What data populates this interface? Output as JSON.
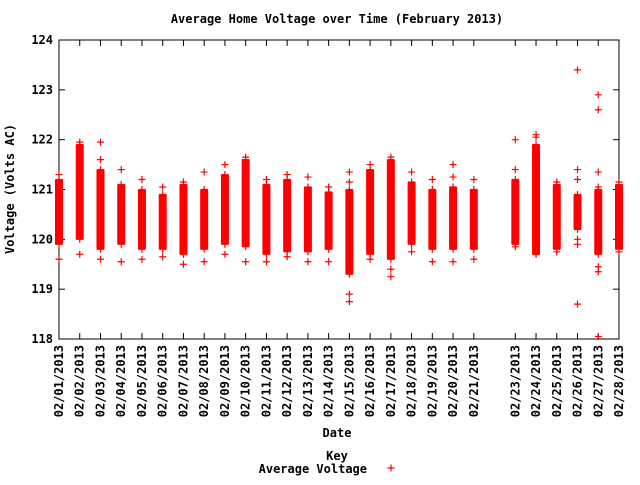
{
  "chart_data": {
    "type": "scatter",
    "title": "Average Home Voltage over Time (February 2013)",
    "xlabel": "Date",
    "ylabel": "Voltage (Volts AC)",
    "ylim": [
      118,
      124
    ],
    "yticks": [
      "118",
      "119",
      "120",
      "121",
      "122",
      "123",
      "124"
    ],
    "x_range": [
      "02/01/2013",
      "02/28/2013"
    ],
    "xticks": [
      "02/01/2013",
      "02/02/2013",
      "02/03/2013",
      "02/04/2013",
      "02/05/2013",
      "02/06/2013",
      "02/07/2013",
      "02/08/2013",
      "02/09/2013",
      "02/10/2013",
      "02/11/2013",
      "02/12/2013",
      "02/13/2013",
      "02/14/2013",
      "02/15/2013",
      "02/16/2013",
      "02/17/2013",
      "02/18/2013",
      "02/19/2013",
      "02/20/2013",
      "02/21/2013",
      "02/23/2013",
      "02/24/2013",
      "02/25/2013",
      "02/26/2013",
      "02/27/2013",
      "02/28/2013"
    ],
    "grid": false,
    "legend": {
      "title": "Key",
      "position": "bottom-center",
      "entries": [
        "Average Voltage"
      ]
    },
    "series": [
      {
        "name": "Average Voltage",
        "color": "#ff0000",
        "marker": "plus",
        "days": [
          {
            "date": "02/01/2013",
            "range": [
              119.9,
              121.2
            ],
            "outliers": [
              119.6,
              121.3
            ]
          },
          {
            "date": "02/02/2013",
            "range": [
              120.0,
              121.9
            ],
            "outliers": [
              119.7,
              121.95
            ]
          },
          {
            "date": "02/03/2013",
            "range": [
              119.8,
              121.4
            ],
            "outliers": [
              119.6,
              121.95,
              121.6
            ]
          },
          {
            "date": "02/04/2013",
            "range": [
              119.9,
              121.1
            ],
            "outliers": [
              119.55,
              121.4
            ]
          },
          {
            "date": "02/05/2013",
            "range": [
              119.8,
              121.0
            ],
            "outliers": [
              119.6,
              121.2
            ]
          },
          {
            "date": "02/06/2013",
            "range": [
              119.8,
              120.9
            ],
            "outliers": [
              119.65,
              121.05
            ]
          },
          {
            "date": "02/07/2013",
            "range": [
              119.7,
              121.1
            ],
            "outliers": [
              119.5,
              121.15
            ]
          },
          {
            "date": "02/08/2013",
            "range": [
              119.8,
              121.0
            ],
            "outliers": [
              119.55,
              121.35
            ]
          },
          {
            "date": "02/09/2013",
            "range": [
              119.9,
              121.3
            ],
            "outliers": [
              119.7,
              121.5
            ]
          },
          {
            "date": "02/10/2013",
            "range": [
              119.85,
              121.6
            ],
            "outliers": [
              119.55,
              121.65
            ]
          },
          {
            "date": "02/11/2013",
            "range": [
              119.7,
              121.1
            ],
            "outliers": [
              119.55,
              121.2
            ]
          },
          {
            "date": "02/12/2013",
            "range": [
              119.75,
              121.2
            ],
            "outliers": [
              119.65,
              121.3
            ]
          },
          {
            "date": "02/13/2013",
            "range": [
              119.75,
              121.05
            ],
            "outliers": [
              119.55,
              121.25
            ]
          },
          {
            "date": "02/14/2013",
            "range": [
              119.8,
              120.95
            ],
            "outliers": [
              119.55,
              121.05
            ]
          },
          {
            "date": "02/15/2013",
            "range": [
              119.3,
              121.0
            ],
            "outliers": [
              118.75,
              118.9,
              121.15,
              121.35
            ]
          },
          {
            "date": "02/16/2013",
            "range": [
              119.7,
              121.4
            ],
            "outliers": [
              119.6,
              121.5
            ]
          },
          {
            "date": "02/17/2013",
            "range": [
              119.6,
              121.6
            ],
            "outliers": [
              119.25,
              119.4,
              121.65
            ]
          },
          {
            "date": "02/18/2013",
            "range": [
              119.9,
              121.15
            ],
            "outliers": [
              119.75,
              121.35
            ]
          },
          {
            "date": "02/19/2013",
            "range": [
              119.8,
              121.0
            ],
            "outliers": [
              119.55,
              121.2
            ]
          },
          {
            "date": "02/20/2013",
            "range": [
              119.8,
              121.05
            ],
            "outliers": [
              119.55,
              121.25,
              121.5
            ]
          },
          {
            "date": "02/21/2013",
            "range": [
              119.8,
              121.0
            ],
            "outliers": [
              119.6,
              121.2
            ]
          },
          {
            "date": "02/23/2013",
            "range": [
              119.9,
              121.2
            ],
            "outliers": [
              119.85,
              121.4,
              122.0
            ]
          },
          {
            "date": "02/24/2013",
            "range": [
              119.7,
              121.9
            ],
            "outliers": [
              119.7,
              122.05,
              122.1
            ]
          },
          {
            "date": "02/25/2013",
            "range": [
              119.8,
              121.1
            ],
            "outliers": [
              119.75,
              121.15
            ]
          },
          {
            "date": "02/26/2013",
            "range": [
              120.2,
              120.9
            ],
            "outliers": [
              118.7,
              119.9,
              120.0,
              121.2,
              121.4,
              123.4
            ]
          },
          {
            "date": "02/27/2013",
            "range": [
              119.7,
              121.0
            ],
            "outliers": [
              118.05,
              119.35,
              119.45,
              121.05,
              121.35,
              122.6,
              122.9
            ]
          },
          {
            "date": "02/28/2013",
            "range": [
              119.8,
              121.1
            ],
            "outliers": [
              119.75,
              121.15
            ]
          }
        ]
      }
    ]
  }
}
